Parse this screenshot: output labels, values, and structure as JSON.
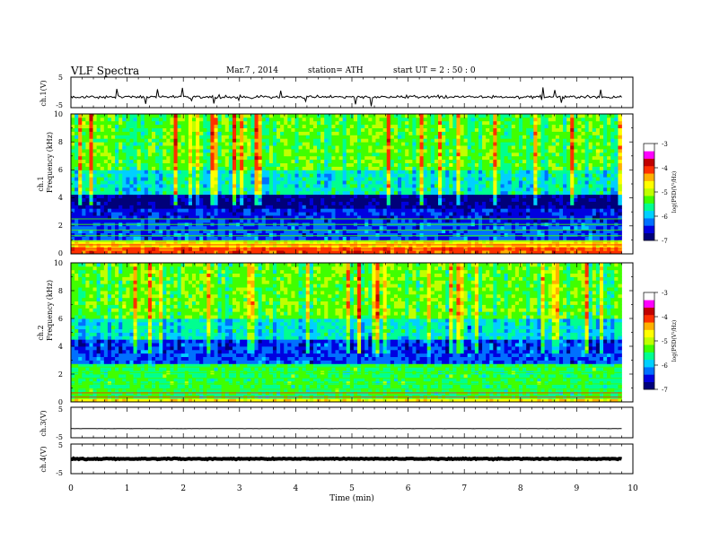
{
  "header": {
    "title": "VLF  Spectra",
    "date": "Mar.7  , 2014",
    "station": "station= ATH",
    "start": "start  UT  =   2  : 50 : 0"
  },
  "xaxis": {
    "label": "Time  (min)",
    "ticks": [
      "0",
      "1",
      "2",
      "3",
      "4",
      "5",
      "6",
      "7",
      "8",
      "9",
      "10"
    ]
  },
  "panels": {
    "ch1_wave": {
      "label": "ch.1(V)",
      "ticks": [
        "5",
        "-5"
      ]
    },
    "ch1_spec": {
      "label_top": "ch.1",
      "label_bottom": "Frequency  (kHz)",
      "ticks": [
        "10",
        "8",
        "6",
        "4",
        "2",
        "0"
      ]
    },
    "ch2_spec": {
      "label_top": "ch.2",
      "label_bottom": "Frequency  (kHz)",
      "ticks": [
        "10",
        "8",
        "6",
        "4",
        "2",
        "0"
      ]
    },
    "ch3_wave": {
      "label": "ch.3(V)",
      "ticks": [
        "5",
        "-5"
      ]
    },
    "ch4_wave": {
      "label": "ch.4(V)",
      "ticks": [
        "5",
        "-5"
      ]
    }
  },
  "colorbar": {
    "label": "log(PSD(V²/Hz)",
    "ticks": [
      "-3",
      "-4",
      "-5",
      "-6",
      "-7"
    ]
  },
  "colors": {
    "colormap": [
      "#00007a",
      "#0000e0",
      "#0070ff",
      "#00d0ff",
      "#00ff90",
      "#40ff00",
      "#c0ff00",
      "#ffff00",
      "#ffb000",
      "#ff3000",
      "#c00000",
      "#ff00ff",
      "#ffffff"
    ],
    "signal": "#000000"
  },
  "chart_data": [
    {
      "type": "line",
      "name": "ch.1(V)",
      "xlim": [
        0,
        10
      ],
      "ylim": [
        -5,
        5
      ],
      "x_range": [
        0,
        9.8
      ],
      "baseline": -1.5,
      "noise_amplitude": 0.7,
      "spike_amplitude": 3
    },
    {
      "type": "heatmap",
      "name": "ch.1",
      "xlim": [
        0,
        10
      ],
      "ylim": [
        0,
        10
      ],
      "x_range": [
        0,
        9.8
      ],
      "color_range": [
        -7,
        -3
      ],
      "bands": [
        {
          "f": [
            0,
            0.5
          ],
          "level": -3.6
        },
        {
          "f": [
            0.5,
            1.0
          ],
          "level": -4.2
        },
        {
          "f": [
            1.0,
            2.2
          ],
          "level": -6.2
        },
        {
          "f": [
            2.2,
            3.2
          ],
          "level": -6.4
        },
        {
          "f": [
            3.2,
            4.3
          ],
          "level": -6.7
        },
        {
          "f": [
            4.3,
            6.0
          ],
          "level": -5.4
        },
        {
          "f": [
            6.0,
            10.0
          ],
          "level": -4.9
        }
      ]
    },
    {
      "type": "heatmap",
      "name": "ch.2",
      "xlim": [
        0,
        10
      ],
      "ylim": [
        0,
        10
      ],
      "x_range": [
        0,
        9.8
      ],
      "color_range": [
        -7,
        -3
      ],
      "bands": [
        {
          "f": [
            0,
            0.3
          ],
          "level": -4.2
        },
        {
          "f": [
            0.3,
            2.8
          ],
          "level": -5.2
        },
        {
          "f": [
            2.8,
            4.5
          ],
          "level": -6.2
        },
        {
          "f": [
            4.5,
            6.0
          ],
          "level": -5.5
        },
        {
          "f": [
            6.0,
            10.0
          ],
          "level": -4.9
        }
      ]
    },
    {
      "type": "line",
      "name": "ch.3(V)",
      "xlim": [
        0,
        10
      ],
      "ylim": [
        -5,
        5
      ],
      "x_range": [
        0,
        9.8
      ],
      "baseline": -2.0,
      "noise_amplitude": 0.05
    },
    {
      "type": "line",
      "name": "ch.4(V)",
      "xlim": [
        0,
        10
      ],
      "ylim": [
        -5,
        5
      ],
      "x_range": [
        0,
        9.8
      ],
      "baseline": 0.0,
      "noise_amplitude": 0.25
    }
  ]
}
